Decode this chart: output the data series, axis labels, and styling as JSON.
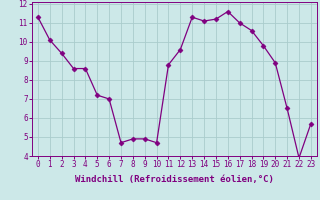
{
  "x": [
    0,
    1,
    2,
    3,
    4,
    5,
    6,
    7,
    8,
    9,
    10,
    11,
    12,
    13,
    14,
    15,
    16,
    17,
    18,
    19,
    20,
    21,
    22,
    23
  ],
  "y": [
    11.3,
    10.1,
    9.4,
    8.6,
    8.6,
    7.2,
    7.0,
    4.7,
    4.9,
    4.9,
    4.7,
    8.8,
    9.6,
    11.3,
    11.1,
    11.2,
    11.6,
    11.0,
    10.6,
    9.8,
    8.9,
    6.5,
    3.9,
    5.7
  ],
  "line_color": "#800080",
  "marker": "D",
  "marker_size": 2.5,
  "bg_color": "#cce8e8",
  "grid_color": "#aacccc",
  "xlabel": "Windchill (Refroidissement éolien,°C)",
  "ylim": [
    4,
    12
  ],
  "xlim": [
    -0.5,
    23.5
  ],
  "yticks": [
    4,
    5,
    6,
    7,
    8,
    9,
    10,
    11,
    12
  ],
  "xticks": [
    0,
    1,
    2,
    3,
    4,
    5,
    6,
    7,
    8,
    9,
    10,
    11,
    12,
    13,
    14,
    15,
    16,
    17,
    18,
    19,
    20,
    21,
    22,
    23
  ],
  "label_fontsize": 6.5,
  "tick_fontsize": 5.5
}
